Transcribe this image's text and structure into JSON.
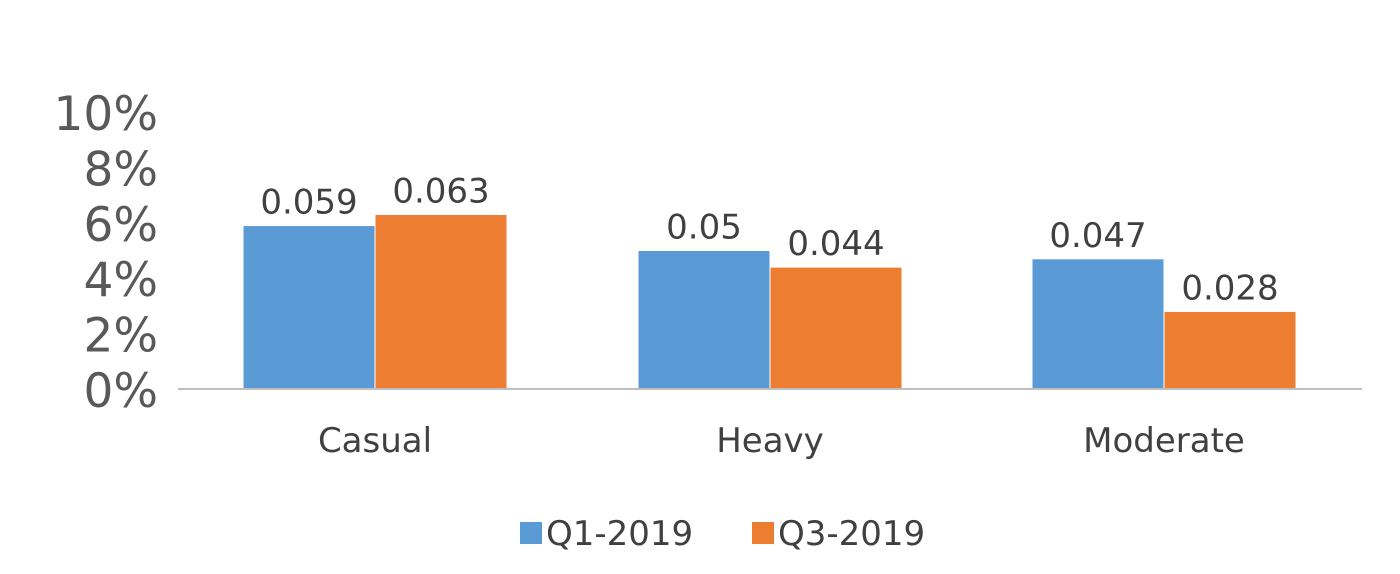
{
  "chart_data": {
    "type": "bar",
    "title": "",
    "xlabel": "",
    "ylabel": "",
    "categories": [
      "Casual",
      "Heavy",
      "Moderate"
    ],
    "series": [
      {
        "name": "Q1-2019",
        "color": "#5b9bd5",
        "values": [
          0.059,
          0.05,
          0.047
        ],
        "labels": [
          "0.059",
          "0.05",
          "0.047"
        ]
      },
      {
        "name": "Q3-2019",
        "color": "#ed7d31",
        "values": [
          0.063,
          0.044,
          0.028
        ],
        "labels": [
          "0.063",
          "0.044",
          "0.028"
        ]
      }
    ],
    "ylim": [
      0,
      0.1
    ],
    "y_ticks": [
      {
        "value": 0,
        "label": "0%"
      },
      {
        "value": 0.02,
        "label": "2%"
      },
      {
        "value": 0.04,
        "label": "4%"
      },
      {
        "value": 0.06,
        "label": "6%"
      },
      {
        "value": 0.08,
        "label": "8%"
      },
      {
        "value": 0.1,
        "label": "10%"
      }
    ],
    "grid": false,
    "legend_position": "bottom",
    "axis_color": "#bfbfbf",
    "bar_outline_color": "#ffffff"
  }
}
